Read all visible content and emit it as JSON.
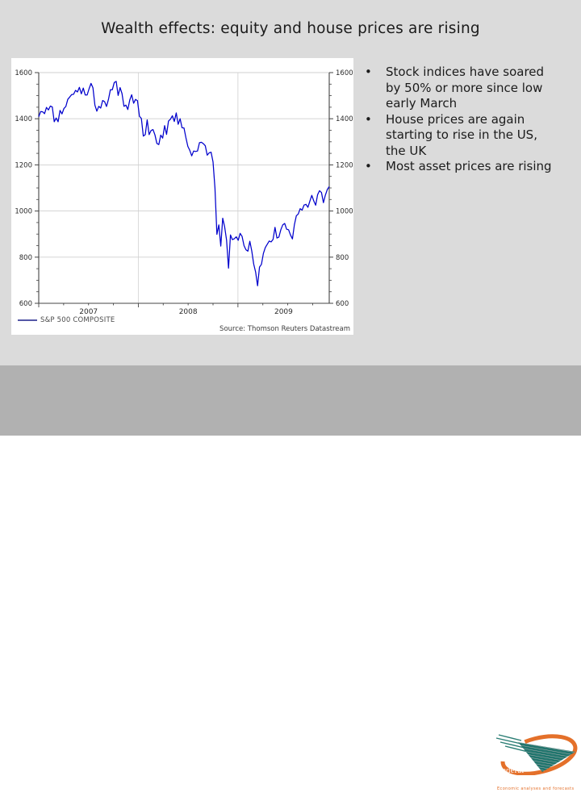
{
  "title": "Wealth effects: equity and house prices are rising",
  "bullets": [
    {
      "text": "Stock indices have soared\nby 50% or more since low\nearly March"
    },
    {
      "text": "House prices are again\nstarting to rise in the US,\nthe UK"
    },
    {
      "text": "Most asset prices are rising"
    }
  ],
  "chart_data": {
    "type": "line",
    "title": "",
    "xlabel": "",
    "ylabel": "",
    "x_unit": "weekly closes",
    "x_range": [
      "Jan 2007",
      "Nov 2009"
    ],
    "x_year_labels": [
      "2007",
      "2008",
      "2009"
    ],
    "x_months_total": 35,
    "year_start_months": [
      12,
      24
    ],
    "yticks": [
      600,
      800,
      1000,
      1200,
      1400,
      1600
    ],
    "ylim": [
      600,
      1600
    ],
    "grid": true,
    "legend_position": "bottom-left",
    "line_color": "#0000cc",
    "source": "Source: Thomson Reuters Datastream",
    "series": [
      {
        "name": "S&P 500 COMPOSITE",
        "values": [
          1409,
          1431,
          1430,
          1422,
          1449,
          1438,
          1455,
          1451,
          1387,
          1403,
          1387,
          1436,
          1421,
          1444,
          1453,
          1484,
          1494,
          1505,
          1506,
          1523,
          1516,
          1536,
          1508,
          1533,
          1503,
          1503,
          1530,
          1553,
          1534,
          1459,
          1433,
          1454,
          1446,
          1479,
          1474,
          1453,
          1484,
          1526,
          1526,
          1557,
          1562,
          1501,
          1535,
          1509,
          1454,
          1459,
          1440,
          1481,
          1504,
          1467,
          1484,
          1478,
          1411,
          1401,
          1325,
          1331,
          1395,
          1331,
          1349,
          1353,
          1330,
          1293,
          1288,
          1329,
          1316,
          1370,
          1332,
          1390,
          1398,
          1413,
          1388,
          1425,
          1376,
          1400,
          1361,
          1360,
          1318,
          1280,
          1263,
          1239,
          1260,
          1258,
          1260,
          1296,
          1298,
          1292,
          1283,
          1242,
          1252,
          1255,
          1213,
          1099,
          899,
          940,
          848,
          969,
          931,
          873,
          752,
          896,
          876,
          880,
          888,
          873,
          903,
          890,
          850,
          832,
          826,
          869,
          827,
          770,
          735,
          676,
          757,
          769,
          816,
          842,
          856,
          870,
          866,
          877,
          929,
          883,
          887,
          919,
          940,
          946,
          921,
          919,
          896,
          879,
          940,
          979,
          987,
          1010,
          1004,
          1026,
          1029,
          1016,
          1043,
          1068,
          1044,
          1025,
          1071,
          1088,
          1080,
          1036,
          1069,
          1093,
          1106
        ]
      }
    ]
  },
  "logo": {
    "name_line1": "Federal",
    "name_line2": "Planning Bureau",
    "tagline": "Economic analyses and forecasts",
    "orange": "#e4702a",
    "teal": "#20756d"
  },
  "colors": {
    "slide_bg": "#dbdbdb",
    "footer_bg": "#b1b1b1",
    "chart_bg": "#ffffff",
    "text": "#1b1b1b",
    "gridline": "#cfcfcf",
    "axis": "#444444"
  }
}
